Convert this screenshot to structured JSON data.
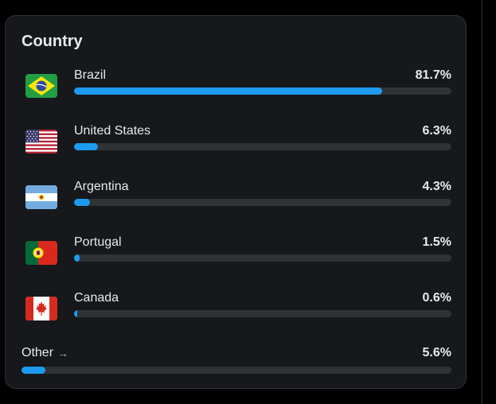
{
  "card": {
    "title": "Country"
  },
  "countries": [
    {
      "name": "Brazil",
      "percent_label": "81.7%",
      "fraction": 0.817
    },
    {
      "name": "United States",
      "percent_label": "6.3%",
      "fraction": 0.063
    },
    {
      "name": "Argentina",
      "percent_label": "4.3%",
      "fraction": 0.043
    },
    {
      "name": "Portugal",
      "percent_label": "1.5%",
      "fraction": 0.015
    },
    {
      "name": "Canada",
      "percent_label": "0.6%",
      "fraction": 0.006
    }
  ],
  "other": {
    "label": "Other",
    "arrow": "→",
    "percent_label": "5.6%",
    "fraction": 0.056
  },
  "colors": {
    "accent": "#1d9bf0",
    "track": "#2f3336",
    "card_bg": "#16181c"
  },
  "icons": {
    "flags": [
      "brazil-flag-icon",
      "united-states-flag-icon",
      "argentina-flag-icon",
      "portugal-flag-icon",
      "canada-flag-icon"
    ],
    "other_arrow": "arrow-right-icon"
  }
}
